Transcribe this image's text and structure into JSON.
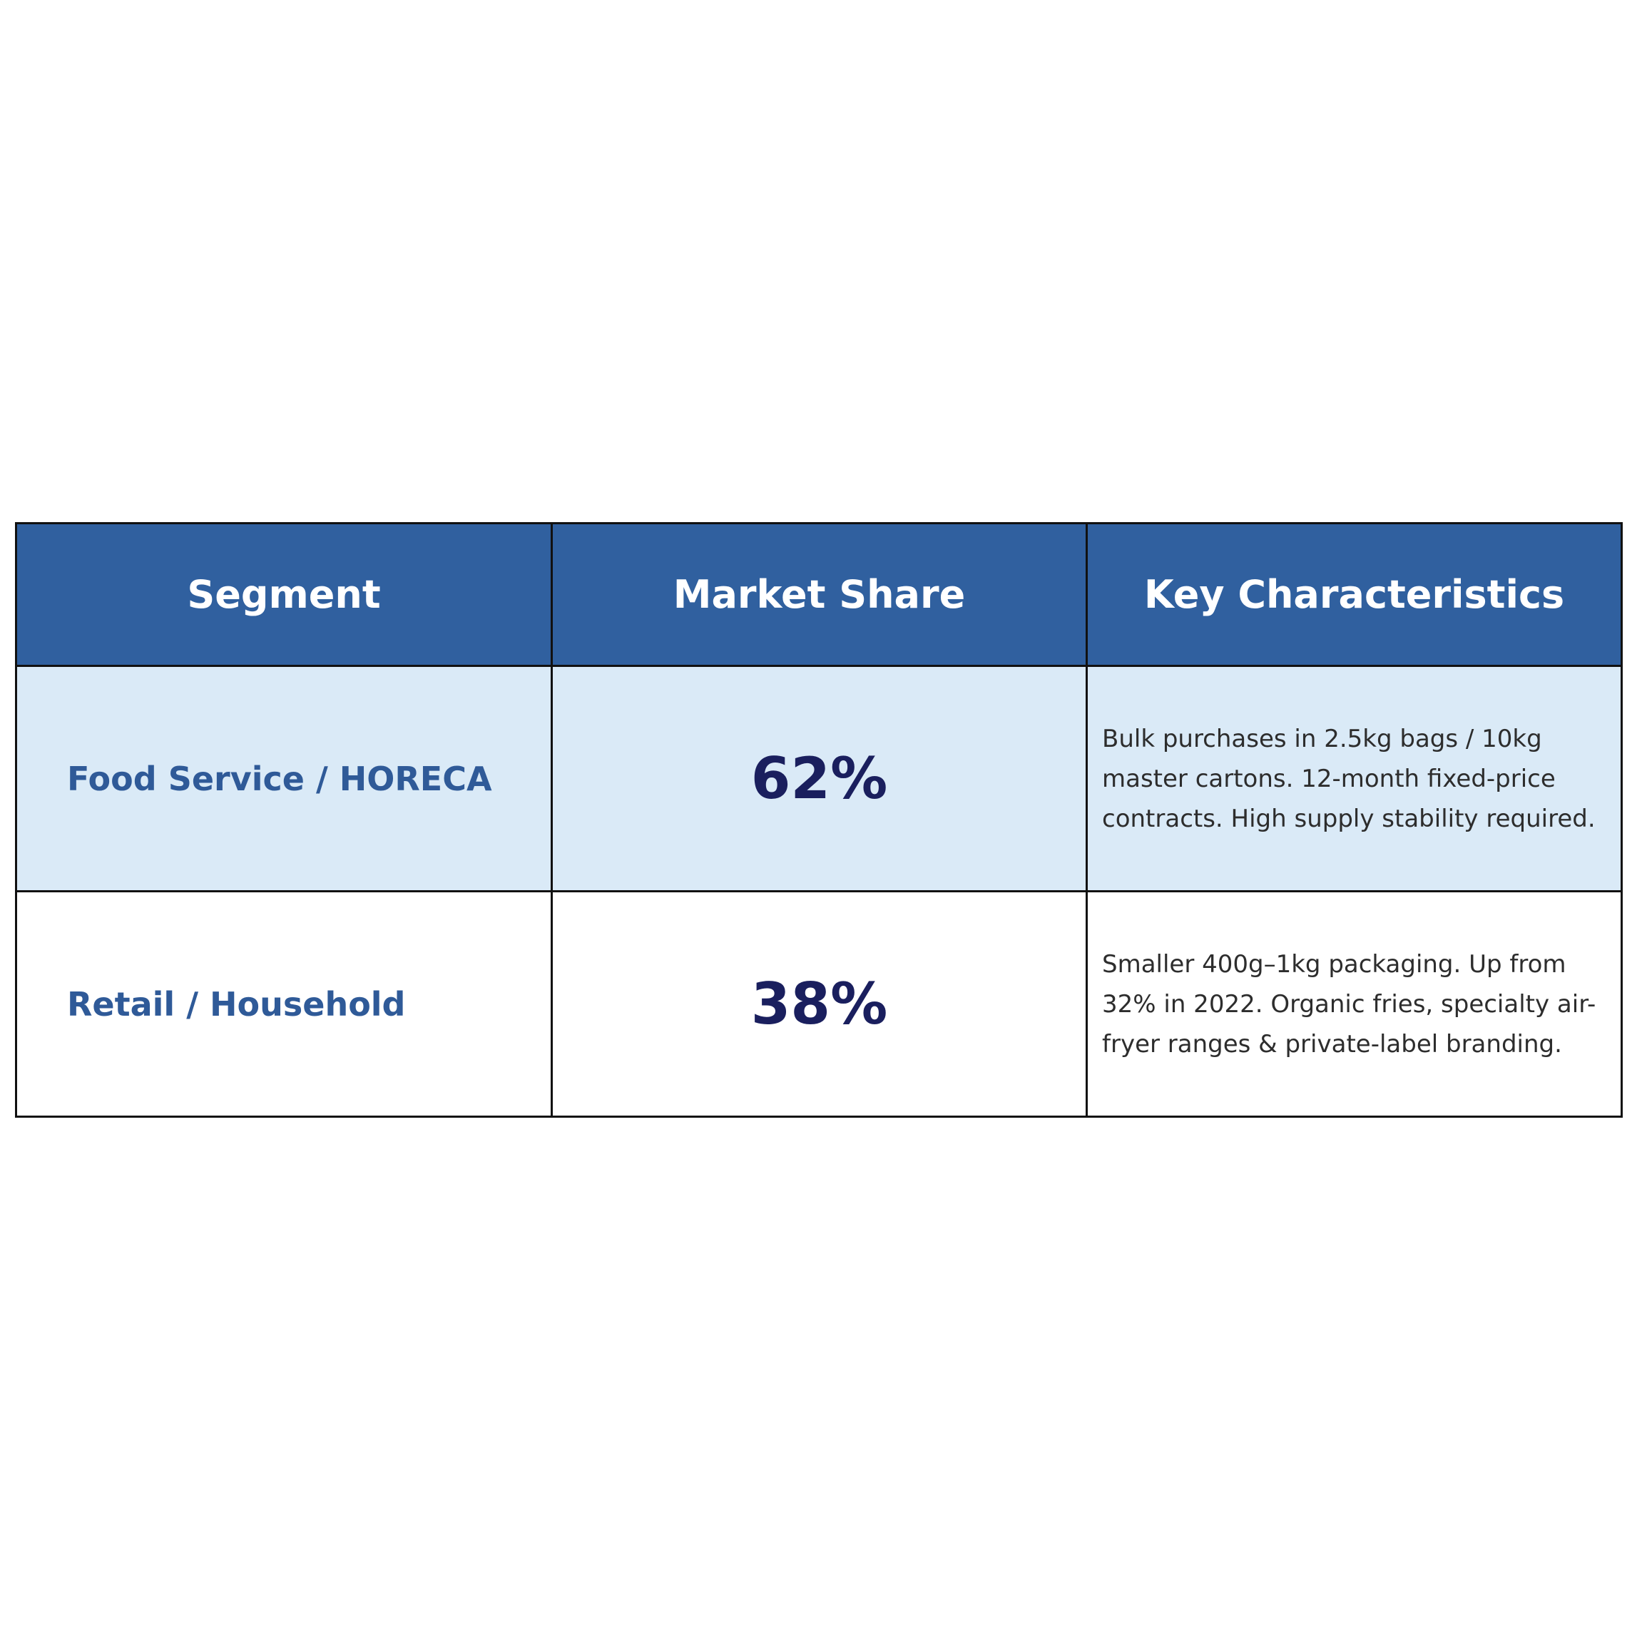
{
  "table": {
    "headers": [
      "Segment",
      "Market Share",
      "Key Characteristics"
    ],
    "rows": [
      {
        "segment": "Food Service / HORECA",
        "share": "62%",
        "characteristics": "Bulk purchases in 2.5kg bags / 10kg master cartons. 12-month fixed-price contracts. High supply stability required."
      },
      {
        "segment": "Retail / Household",
        "share": "38%",
        "characteristics": "Smaller 400g–1kg packaging. Up from 32% in 2022. Organic fries, specialty air-fryer ranges & private-label branding."
      }
    ]
  },
  "colors": {
    "header_bg": "#30609f",
    "header_text": "#ffffff",
    "segment_text": "#2f5a98",
    "share_text": "#1a1f5e",
    "alt_row_bg": "#daeaf7",
    "border": "#111111"
  }
}
